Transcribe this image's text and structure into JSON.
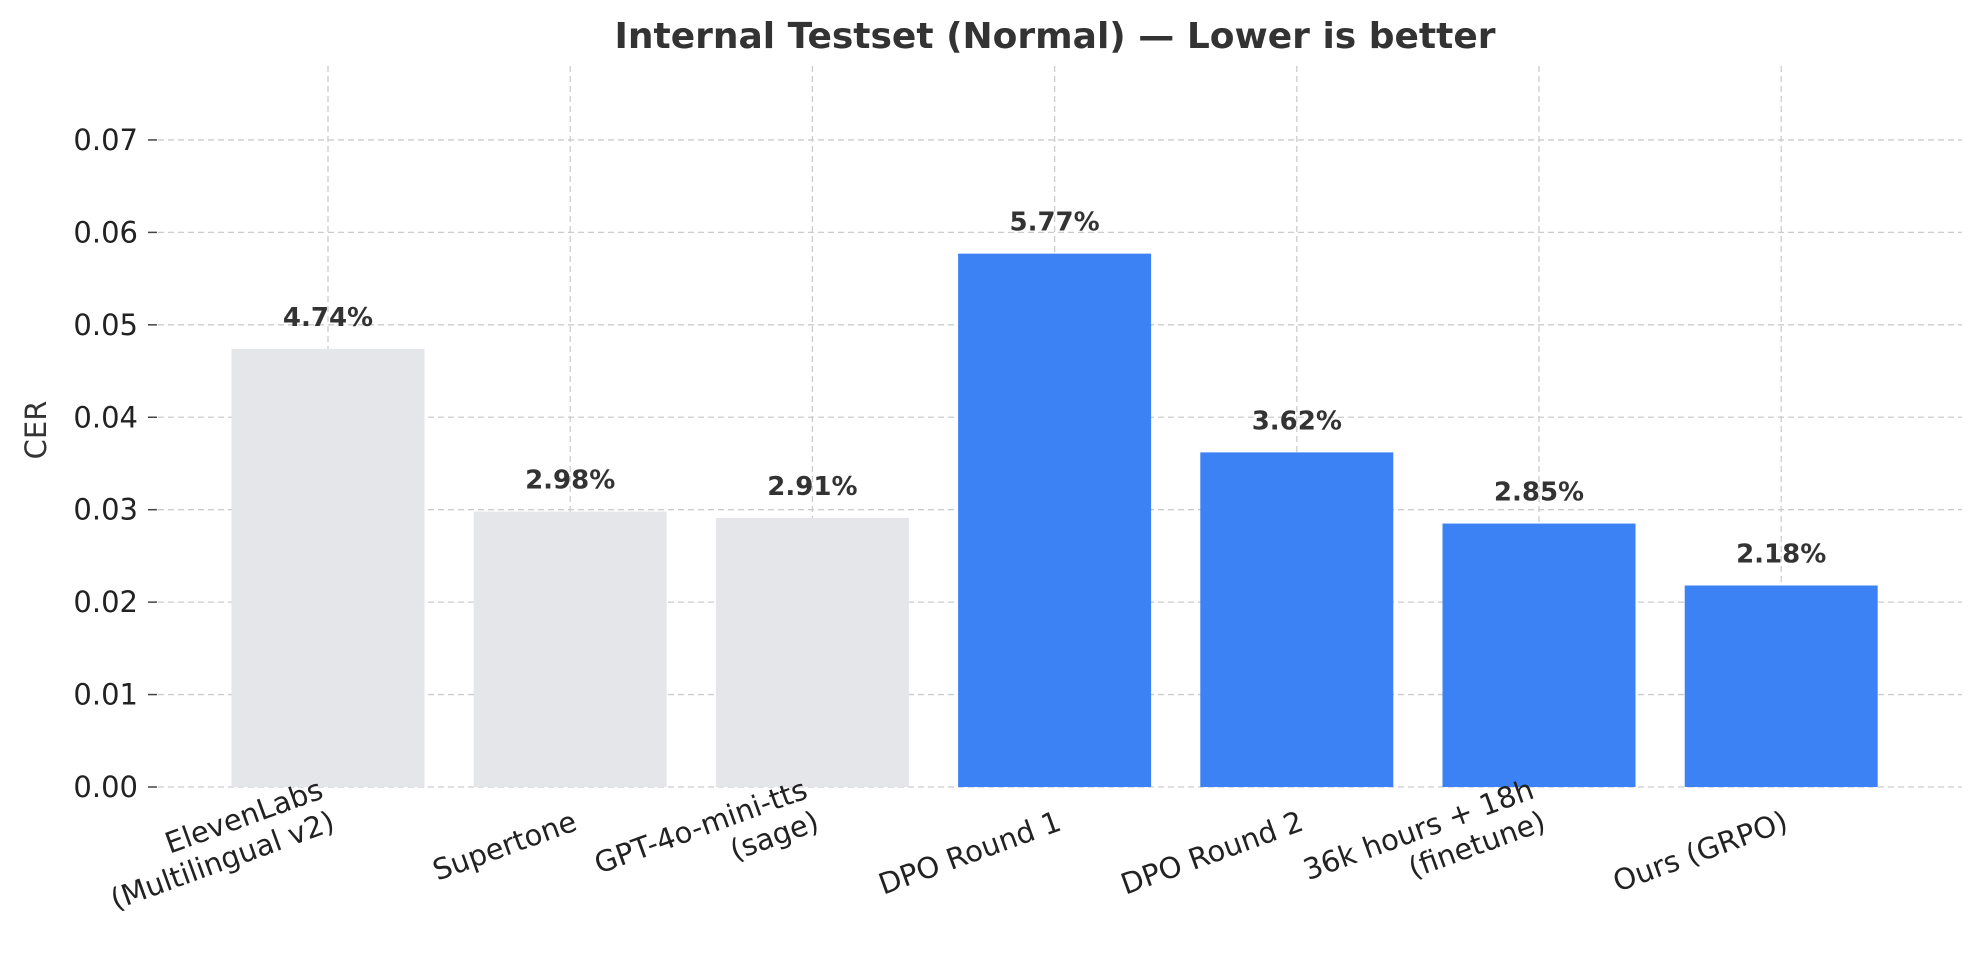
{
  "chart_data": {
    "type": "bar",
    "title": "Internal Testset (Normal) — Lower is better",
    "xlabel": "",
    "ylabel": "CER",
    "ylim": [
      0,
      0.078
    ],
    "yticks": [
      "0.00",
      "0.01",
      "0.02",
      "0.03",
      "0.04",
      "0.05",
      "0.06",
      "0.07"
    ],
    "ytick_values": [
      0,
      0.01,
      0.02,
      0.03,
      0.04,
      0.05,
      0.06,
      0.07
    ],
    "grid": true,
    "categories": [
      [
        "ElevenLabs",
        "(Multilingual v2)"
      ],
      [
        "Supertone"
      ],
      [
        "GPT-4o-mini-tts",
        "(sage)"
      ],
      [
        "DPO Round 1"
      ],
      [
        "DPO Round 2"
      ],
      [
        "36k hours + 18h",
        "(finetune)"
      ],
      [
        "Ours (GRPO)"
      ]
    ],
    "values": [
      0.0474,
      0.0298,
      0.0291,
      0.0577,
      0.0362,
      0.0285,
      0.0218
    ],
    "data_labels": [
      "4.74%",
      "2.98%",
      "2.91%",
      "5.77%",
      "3.62%",
      "2.85%",
      "2.18%"
    ],
    "bar_colors": [
      "#e5e6ea",
      "#e5e6ea",
      "#e5e6ea",
      "#3d82f4",
      "#3d82f4",
      "#3d82f4",
      "#3d82f4"
    ]
  }
}
